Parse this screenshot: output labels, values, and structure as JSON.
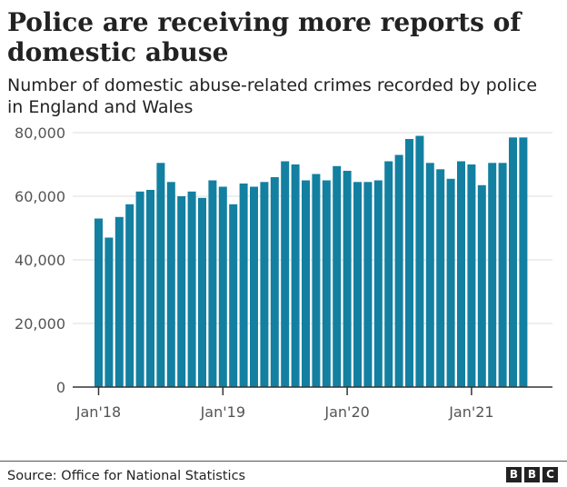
{
  "title": "Police are receiving more reports of domestic abuse",
  "subtitle": "Number of domestic abuse-related crimes recorded by police in England and Wales",
  "source": "Source: Office for National Statistics",
  "logo": [
    "B",
    "B",
    "C"
  ],
  "colors": {
    "bar": "#1380a1",
    "grid": "#dcdcdc",
    "axis": "#333333",
    "text": "#555555"
  },
  "chart_data": {
    "type": "bar",
    "title": "Police are receiving more reports of domestic abuse",
    "subtitle": "Number of domestic abuse-related crimes recorded by police in England and Wales",
    "xlabel": "",
    "ylabel": "",
    "ylim": [
      0,
      80000
    ],
    "yticks": [
      0,
      20000,
      40000,
      60000,
      80000
    ],
    "ytick_labels": [
      "0",
      "20,000",
      "40,000",
      "60,000",
      "80,000"
    ],
    "xtick_labels": [
      "Jan'18",
      "Jan'19",
      "Jan'20",
      "Jan'21"
    ],
    "grid": true,
    "categories": [
      "2018-01",
      "2018-02",
      "2018-03",
      "2018-04",
      "2018-05",
      "2018-06",
      "2018-07",
      "2018-08",
      "2018-09",
      "2018-10",
      "2018-11",
      "2018-12",
      "2019-01",
      "2019-02",
      "2019-03",
      "2019-04",
      "2019-05",
      "2019-06",
      "2019-07",
      "2019-08",
      "2019-09",
      "2019-10",
      "2019-11",
      "2019-12",
      "2020-01",
      "2020-02",
      "2020-03",
      "2020-04",
      "2020-05",
      "2020-06",
      "2020-07",
      "2020-08",
      "2020-09",
      "2020-10",
      "2020-11",
      "2020-12",
      "2021-01",
      "2021-02",
      "2021-03",
      "2021-04",
      "2021-05",
      "2021-06"
    ],
    "values": [
      53000,
      47000,
      53500,
      57500,
      61500,
      62000,
      70500,
      64500,
      60000,
      61500,
      59500,
      65000,
      63000,
      57500,
      64000,
      63000,
      64500,
      66000,
      71000,
      70000,
      65000,
      67000,
      65000,
      69500,
      68000,
      64500,
      64500,
      65000,
      71000,
      73000,
      78000,
      79000,
      70500,
      68500,
      65500,
      71000,
      70000,
      63500,
      70500,
      70500,
      78500,
      78500
    ]
  }
}
